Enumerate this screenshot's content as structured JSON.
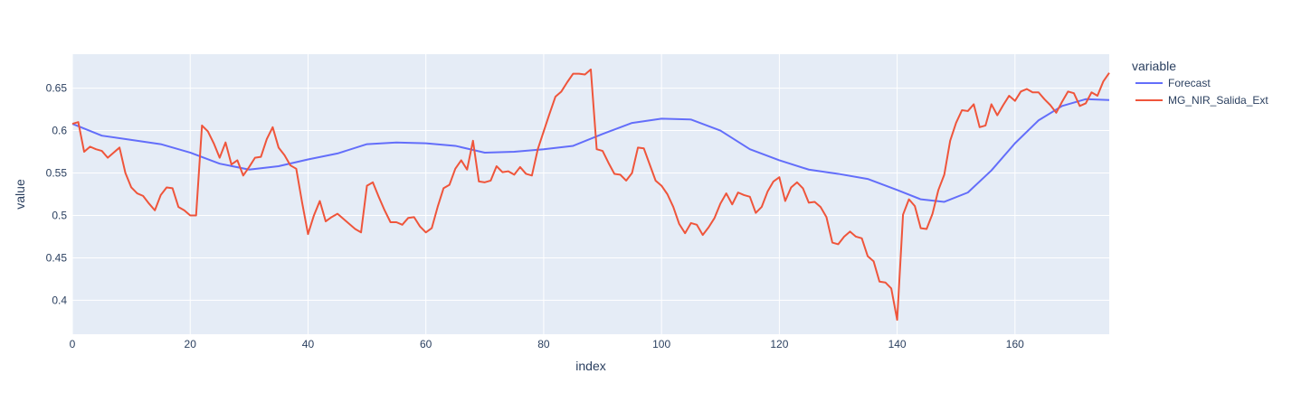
{
  "chart_data": {
    "type": "line",
    "xlabel": "index",
    "ylabel": "value",
    "xlim": [
      0,
      176
    ],
    "ylim": [
      0.36,
      0.69
    ],
    "x_ticks": [
      0,
      20,
      40,
      60,
      80,
      100,
      120,
      140,
      160
    ],
    "x_tick_labels": [
      "0",
      "20",
      "40",
      "60",
      "80",
      "100",
      "120",
      "140",
      "160"
    ],
    "y_ticks": [
      0.4,
      0.45,
      0.5,
      0.55,
      0.6,
      0.65
    ],
    "y_tick_labels": [
      "0.4",
      "0.45",
      "0.5",
      "0.55",
      "0.6",
      "0.65"
    ],
    "grid": true,
    "legend": {
      "title": "variable",
      "placement": "right"
    },
    "series": [
      {
        "name": "Forecast",
        "color": "#636efa",
        "x": [
          0,
          5,
          10,
          15,
          20,
          25,
          30,
          35,
          40,
          45,
          50,
          55,
          60,
          65,
          70,
          75,
          80,
          85,
          90,
          95,
          100,
          105,
          110,
          115,
          120,
          125,
          130,
          135,
          140,
          144,
          148,
          152,
          156,
          160,
          164,
          168,
          172,
          176
        ],
        "values": [
          0.608,
          0.594,
          0.589,
          0.584,
          0.574,
          0.561,
          0.554,
          0.558,
          0.566,
          0.573,
          0.584,
          0.586,
          0.585,
          0.582,
          0.574,
          0.575,
          0.578,
          0.582,
          0.596,
          0.609,
          0.614,
          0.613,
          0.6,
          0.578,
          0.565,
          0.554,
          0.549,
          0.543,
          0.53,
          0.519,
          0.516,
          0.527,
          0.553,
          0.585,
          0.612,
          0.629,
          0.637,
          0.636
        ]
      },
      {
        "name": "MG_NIR_Salida_Ext",
        "color": "#ef553b",
        "x": [
          0,
          1,
          2,
          3,
          4,
          5,
          6,
          7,
          8,
          9,
          10,
          11,
          12,
          13,
          14,
          15,
          16,
          17,
          18,
          19,
          20,
          21,
          22,
          23,
          24,
          25,
          26,
          27,
          28,
          29,
          30,
          31,
          32,
          33,
          34,
          35,
          36,
          37,
          38,
          39,
          40,
          41,
          42,
          43,
          44,
          45,
          46,
          47,
          48,
          49,
          50,
          51,
          52,
          53,
          54,
          55,
          56,
          57,
          58,
          59,
          60,
          61,
          62,
          63,
          64,
          65,
          66,
          67,
          68,
          69,
          70,
          71,
          72,
          73,
          74,
          75,
          76,
          77,
          78,
          79,
          80,
          81,
          82,
          83,
          84,
          85,
          86,
          87,
          88,
          89,
          90,
          91,
          92,
          93,
          94,
          95,
          96,
          97,
          98,
          99,
          100,
          101,
          102,
          103,
          104,
          105,
          106,
          107,
          108,
          109,
          110,
          111,
          112,
          113,
          114,
          115,
          116,
          117,
          118,
          119,
          120,
          121,
          122,
          123,
          124,
          125,
          126,
          127,
          128,
          129,
          130,
          131,
          132,
          133,
          134,
          135,
          136,
          137,
          138,
          139,
          140,
          141,
          142,
          143,
          144,
          145,
          146,
          147,
          148,
          149,
          150,
          151,
          152,
          153,
          154,
          155,
          156,
          157,
          158,
          159,
          160,
          161,
          162,
          163,
          164,
          165,
          166,
          167,
          168,
          169,
          170,
          171,
          172,
          173,
          174,
          175,
          176
        ],
        "values": [
          0.608,
          0.61,
          0.575,
          0.581,
          0.578,
          0.576,
          0.568,
          0.574,
          0.58,
          0.55,
          0.533,
          0.526,
          0.523,
          0.514,
          0.506,
          0.524,
          0.533,
          0.532,
          0.51,
          0.506,
          0.5,
          0.5,
          0.606,
          0.599,
          0.585,
          0.568,
          0.586,
          0.56,
          0.565,
          0.547,
          0.557,
          0.568,
          0.569,
          0.59,
          0.604,
          0.58,
          0.571,
          0.559,
          0.555,
          0.515,
          0.478,
          0.5,
          0.517,
          0.493,
          0.498,
          0.502,
          0.496,
          0.49,
          0.484,
          0.48,
          0.535,
          0.539,
          0.522,
          0.506,
          0.492,
          0.492,
          0.489,
          0.497,
          0.498,
          0.487,
          0.48,
          0.485,
          0.51,
          0.532,
          0.536,
          0.555,
          0.565,
          0.554,
          0.588,
          0.54,
          0.539,
          0.541,
          0.558,
          0.551,
          0.552,
          0.548,
          0.557,
          0.549,
          0.547,
          0.578,
          0.599,
          0.62,
          0.64,
          0.646,
          0.657,
          0.667,
          0.667,
          0.666,
          0.672,
          0.578,
          0.576,
          0.562,
          0.549,
          0.548,
          0.541,
          0.55,
          0.58,
          0.579,
          0.56,
          0.541,
          0.535,
          0.525,
          0.51,
          0.49,
          0.479,
          0.491,
          0.489,
          0.477,
          0.486,
          0.497,
          0.514,
          0.526,
          0.513,
          0.527,
          0.524,
          0.522,
          0.503,
          0.51,
          0.528,
          0.54,
          0.545,
          0.517,
          0.533,
          0.539,
          0.532,
          0.515,
          0.516,
          0.51,
          0.498,
          0.468,
          0.466,
          0.475,
          0.481,
          0.475,
          0.473,
          0.452,
          0.446,
          0.422,
          0.421,
          0.414,
          0.377,
          0.501,
          0.519,
          0.511,
          0.485,
          0.484,
          0.502,
          0.53,
          0.548,
          0.588,
          0.609,
          0.624,
          0.623,
          0.631,
          0.604,
          0.606,
          0.631,
          0.618,
          0.63,
          0.641,
          0.635,
          0.646,
          0.649,
          0.645,
          0.645,
          0.637,
          0.63,
          0.621,
          0.634,
          0.646,
          0.644,
          0.629,
          0.632,
          0.645,
          0.641,
          0.658,
          0.668
        ]
      }
    ]
  }
}
